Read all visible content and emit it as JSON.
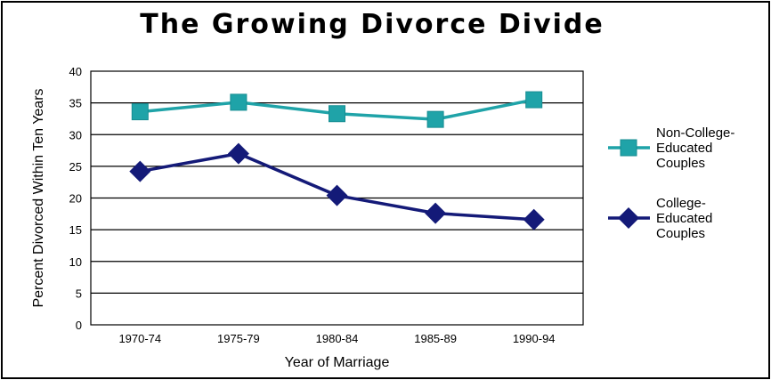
{
  "title": "The Growing Divorce Divide",
  "chart_data": {
    "type": "line",
    "title": "The Growing Divorce Divide",
    "xlabel": "Year of Marriage",
    "ylabel": "Percent Divorced Within Ten Years",
    "ylim": [
      0,
      40
    ],
    "yticks": [
      0,
      5,
      10,
      15,
      20,
      25,
      30,
      35,
      40
    ],
    "grid": true,
    "legend_position": "right",
    "categories": [
      "1970-74",
      "1975-79",
      "1980-84",
      "1985-89",
      "1990-94"
    ],
    "series": [
      {
        "name": "Non-College-Educated Couples",
        "legend_lines": [
          "Non-College-",
          "Educated",
          "Couples"
        ],
        "color": "#1fa3a8",
        "marker": "square",
        "values": [
          33.6,
          35.1,
          33.3,
          32.4,
          35.5
        ]
      },
      {
        "name": "College-Educated Couples",
        "legend_lines": [
          "College-",
          "Educated",
          "Couples"
        ],
        "color": "#141a78",
        "marker": "diamond",
        "values": [
          24.2,
          27.0,
          20.4,
          17.6,
          16.6
        ]
      }
    ]
  }
}
